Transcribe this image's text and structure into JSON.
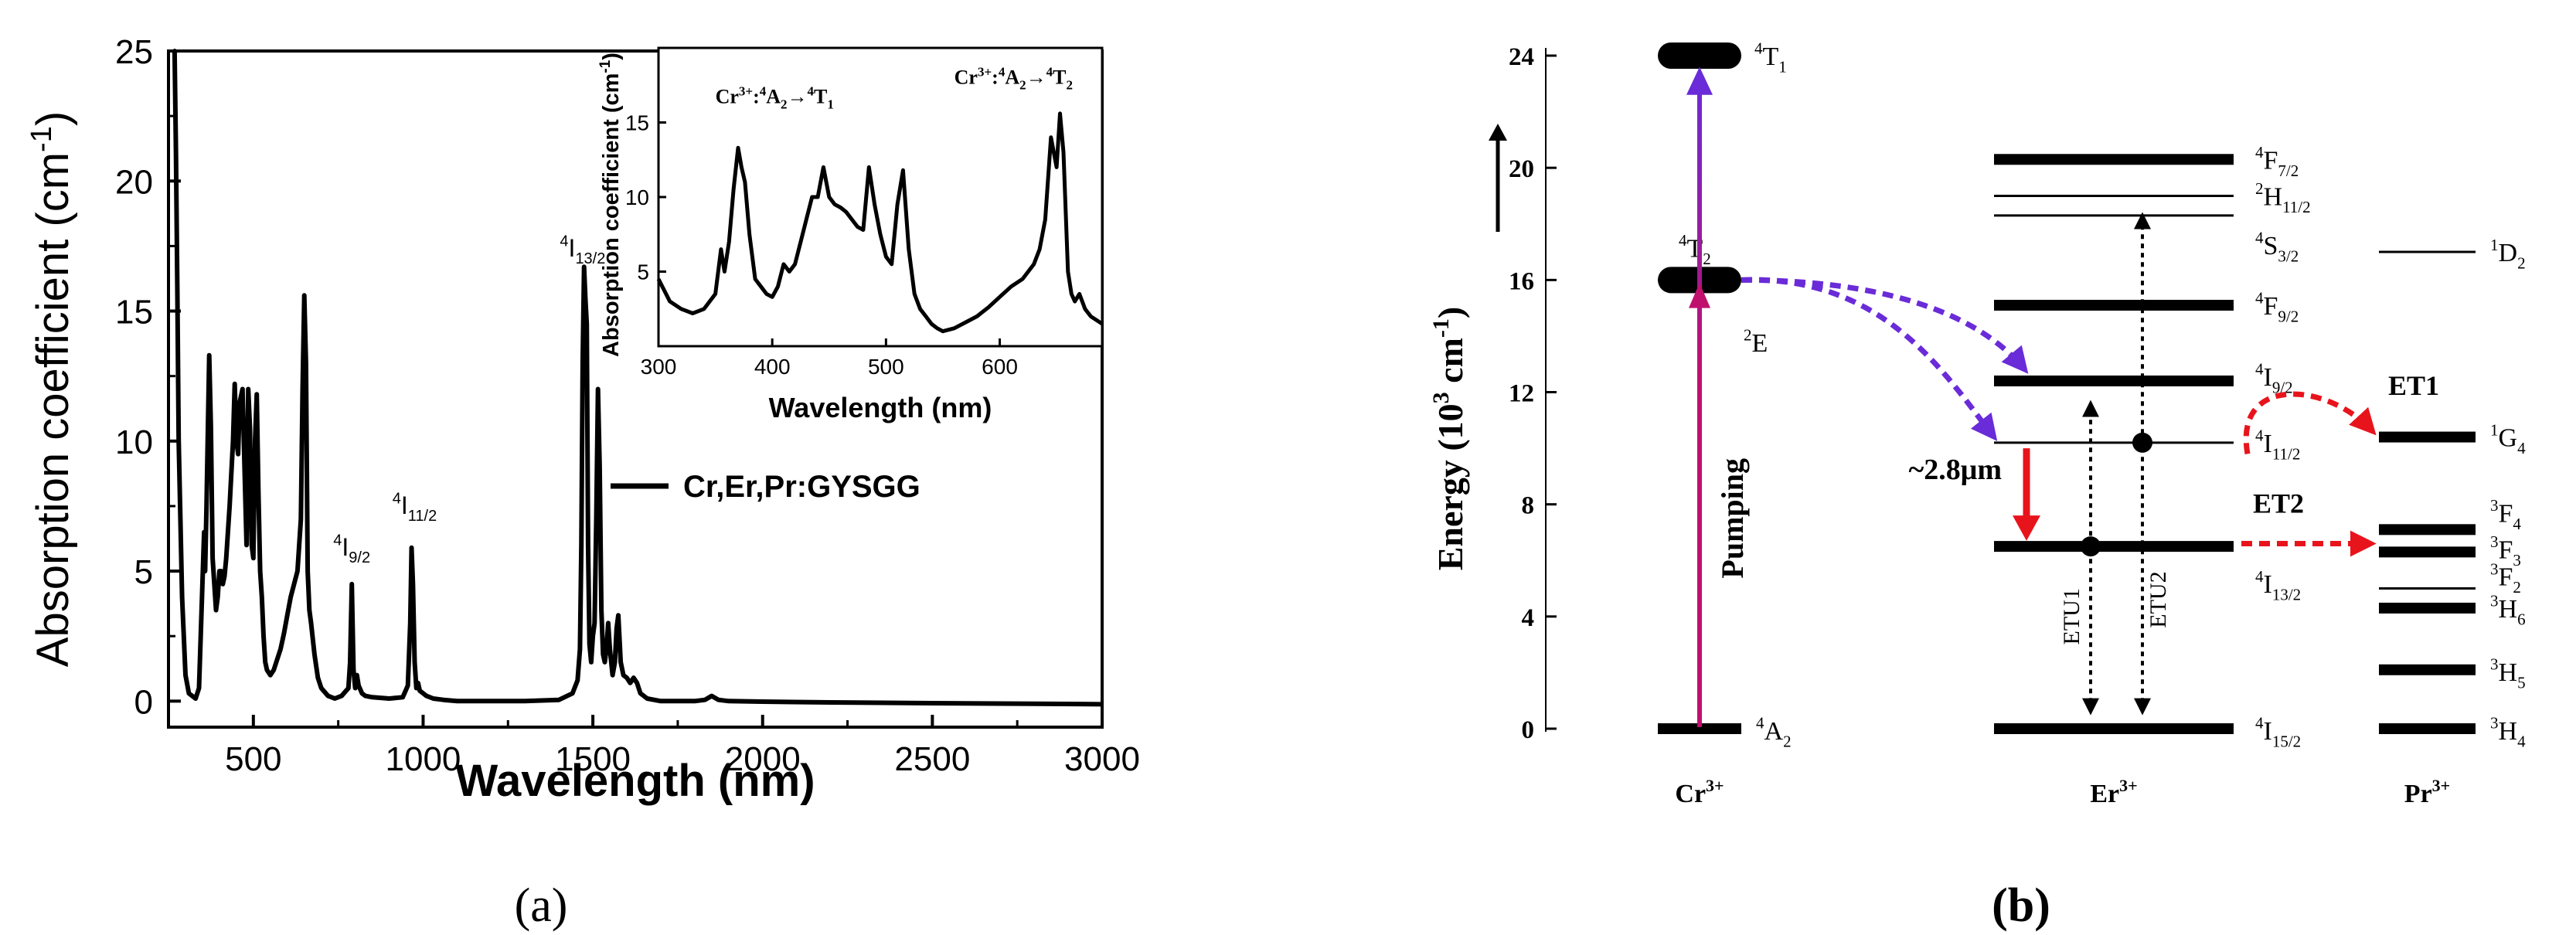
{
  "chart_data": [
    {
      "type": "line",
      "panel_label": "(a)",
      "title": "",
      "xlabel": "Wavelength (nm)",
      "ylabel": "Absorption coefficient (cm",
      "ylabel_sup": "-1",
      "ylabel_close": ")",
      "xlim": [
        250,
        3000
      ],
      "ylim": [
        -1,
        25
      ],
      "xticks": [
        500,
        1000,
        1500,
        2000,
        2500,
        3000
      ],
      "yticks": [
        0,
        5,
        10,
        15,
        20,
        25
      ],
      "legend": {
        "label": "Cr,Er,Pr:GYSGG",
        "placement": "center-right"
      },
      "annotations": [
        {
          "base": "I",
          "sup": "4",
          "sub": "9/2",
          "x": 790,
          "y": 5.6
        },
        {
          "base": "I",
          "sup": "4",
          "sub": "11/2",
          "x": 975,
          "y": 7.2
        },
        {
          "base": "I",
          "sup": "4",
          "sub": "13/2",
          "x": 1470,
          "y": 17.1
        }
      ],
      "series": [
        {
          "name": "Cr,Er,Pr:GYSGG",
          "x": [
            265,
            268,
            272,
            276,
            280,
            290,
            300,
            310,
            320,
            330,
            340,
            350,
            355,
            358,
            362,
            366,
            370,
            375,
            380,
            385,
            390,
            395,
            400,
            405,
            410,
            415,
            420,
            430,
            440,
            445,
            450,
            455,
            460,
            468,
            475,
            480,
            485,
            490,
            495,
            500,
            505,
            510,
            515,
            520,
            525,
            530,
            535,
            540,
            550,
            560,
            570,
            580,
            590,
            600,
            610,
            620,
            630,
            640,
            645,
            650,
            655,
            660,
            665,
            670,
            680,
            690,
            700,
            720,
            740,
            760,
            780,
            785,
            790,
            795,
            800,
            805,
            810,
            820,
            830,
            850,
            900,
            940,
            955,
            962,
            966,
            970,
            975,
            980,
            985,
            990,
            1000,
            1010,
            1030,
            1060,
            1100,
            1200,
            1300,
            1400,
            1440,
            1455,
            1462,
            1466,
            1470,
            1474,
            1478,
            1482,
            1486,
            1490,
            1495,
            1500,
            1505,
            1510,
            1515,
            1520,
            1525,
            1530,
            1535,
            1540,
            1545,
            1550,
            1558,
            1565,
            1570,
            1575,
            1582,
            1590,
            1600,
            1610,
            1620,
            1630,
            1640,
            1660,
            1700,
            1800,
            1830,
            1850,
            1870,
            1900,
            2000,
            2200,
            2500,
            2800,
            3000
          ],
          "y": [
            25,
            25,
            21,
            16,
            10,
            4,
            1,
            0.3,
            0.2,
            0.1,
            0.5,
            4.5,
            6.5,
            5.0,
            7.5,
            10.5,
            13.3,
            10.5,
            5.5,
            4.5,
            3.5,
            4.0,
            5.0,
            5.0,
            4.5,
            4.8,
            5.5,
            7.5,
            10.0,
            12.2,
            10.0,
            9.5,
            11.5,
            12.0,
            8.5,
            6.0,
            12.0,
            10.5,
            6.0,
            5.5,
            10.0,
            11.8,
            8.0,
            5.0,
            4.0,
            2.5,
            1.5,
            1.2,
            1.0,
            1.2,
            1.6,
            2.0,
            2.6,
            3.3,
            4.0,
            4.5,
            5.0,
            7.0,
            12.0,
            15.6,
            13.0,
            5.0,
            3.5,
            3.0,
            1.8,
            0.9,
            0.5,
            0.2,
            0.1,
            0.2,
            0.5,
            1.5,
            4.5,
            1.2,
            0.5,
            1.0,
            0.6,
            0.3,
            0.2,
            0.15,
            0.1,
            0.15,
            0.6,
            3.0,
            5.9,
            4.5,
            1.5,
            0.5,
            0.7,
            0.4,
            0.3,
            0.2,
            0.1,
            0.05,
            0.0,
            0.0,
            0.0,
            0.05,
            0.3,
            0.8,
            2.0,
            6.0,
            13.0,
            16.7,
            15.5,
            14.5,
            6.0,
            2.2,
            1.5,
            2.5,
            3.0,
            7.0,
            12.0,
            9.0,
            3.5,
            1.8,
            1.5,
            2.0,
            3.0,
            2.0,
            1.0,
            1.5,
            2.8,
            3.3,
            1.5,
            1.0,
            0.9,
            0.7,
            0.9,
            0.7,
            0.3,
            0.1,
            0.0,
            0.0,
            0.05,
            0.2,
            0.05,
            0.0,
            -0.02,
            -0.05,
            -0.08,
            -0.1,
            -0.12
          ]
        }
      ]
    },
    {
      "type": "line",
      "title": "",
      "xlabel": "Wavelength (nm)",
      "ylabel": "Absorption coefficient (cm",
      "ylabel_sup": "-1",
      "ylabel_close": ")",
      "xlim": [
        300,
        690
      ],
      "ylim": [
        0,
        20
      ],
      "xticks": [
        300,
        400,
        500,
        600
      ],
      "yticks": [
        5,
        10,
        15
      ],
      "annotations": [
        {
          "text_prefix": "Cr",
          "text_prefix_sup": "3+",
          "text_colon": ":",
          "from_sup": "4",
          "from_base": "A",
          "from_sub": "2",
          "arrow": "→",
          "to_sup": "4",
          "to_base": "T",
          "to_sub": "1",
          "x": 350,
          "y": 16.3
        },
        {
          "text_prefix": "Cr",
          "text_prefix_sup": "3+",
          "text_colon": ":",
          "from_sup": "4",
          "from_base": "A",
          "from_sub": "2",
          "arrow": "→",
          "to_sup": "4",
          "to_base": "T",
          "to_sub": "2",
          "x": 560,
          "y": 17.6
        }
      ],
      "series": [
        {
          "name": "Cr,Er,Pr:GYSGG",
          "x": [
            300,
            310,
            320,
            330,
            340,
            350,
            355,
            358,
            362,
            366,
            370,
            373,
            376,
            380,
            385,
            390,
            395,
            400,
            405,
            410,
            415,
            420,
            425,
            430,
            435,
            440,
            445,
            450,
            455,
            460,
            465,
            470,
            475,
            480,
            485,
            490,
            495,
            500,
            505,
            510,
            515,
            520,
            525,
            530,
            535,
            540,
            545,
            550,
            560,
            570,
            580,
            590,
            600,
            610,
            620,
            630,
            635,
            640,
            645,
            650,
            653,
            656,
            660,
            663,
            666,
            670,
            675,
            680,
            690
          ],
          "y": [
            4.5,
            3.0,
            2.5,
            2.2,
            2.5,
            3.5,
            6.5,
            5.0,
            7.0,
            10.5,
            13.3,
            12.0,
            11.0,
            7.5,
            4.5,
            4.0,
            3.5,
            3.3,
            4.0,
            5.5,
            5.0,
            5.5,
            7.0,
            8.5,
            10.0,
            10.0,
            12.0,
            10.0,
            9.5,
            9.3,
            9.0,
            8.5,
            8.0,
            7.8,
            12.0,
            9.5,
            7.5,
            6.0,
            5.5,
            9.5,
            11.8,
            6.5,
            3.5,
            2.5,
            2.0,
            1.5,
            1.2,
            1.0,
            1.2,
            1.6,
            2.0,
            2.6,
            3.3,
            4.0,
            4.5,
            5.5,
            6.5,
            8.5,
            14.0,
            12.0,
            15.6,
            13.0,
            5.0,
            3.5,
            3.0,
            3.5,
            2.5,
            2.0,
            1.5
          ]
        }
      ]
    },
    {
      "type": "diagram",
      "panel_label": "(b)",
      "title": "",
      "ylabel": "Energy (10",
      "ylabel_sup": "3",
      "ylabel_unit": " cm",
      "ylabel_unit_sup": "-1",
      "ylabel_close": ")",
      "ylim": [
        0,
        24
      ],
      "yticks": [
        0,
        4,
        8,
        12,
        16,
        20,
        24
      ],
      "columns": [
        {
          "ion": "Cr",
          "ion_sup": "3+",
          "levels": [
            {
              "base": "A",
              "sup": "4",
              "sub": "2",
              "energy": 0,
              "style": "thick"
            },
            {
              "base": "T",
              "sup": "4",
              "sub": "2",
              "energy": 16.0,
              "style": "pill"
            },
            {
              "base": "E",
              "sup": "2",
              "sub": "",
              "energy": 15.1,
              "style": "label-only"
            },
            {
              "base": "T",
              "sup": "4",
              "sub": "1",
              "energy": 24.0,
              "style": "pill"
            }
          ]
        },
        {
          "ion": "Er",
          "ion_sup": "3+",
          "levels": [
            {
              "base": "I",
              "sup": "4",
              "sub": "15/2",
              "energy": 0,
              "style": "thick"
            },
            {
              "base": "I",
              "sup": "4",
              "sub": "13/2",
              "energy": 6.5,
              "style": "thick"
            },
            {
              "base": "I",
              "sup": "4",
              "sub": "11/2",
              "energy": 10.2,
              "style": "thin"
            },
            {
              "base": "I",
              "sup": "4",
              "sub": "9/2",
              "energy": 12.4,
              "style": "thick"
            },
            {
              "base": "F",
              "sup": "4",
              "sub": "9/2",
              "energy": 15.1,
              "style": "thick"
            },
            {
              "base": "S",
              "sup": "4",
              "sub": "3/2",
              "energy": 18.3,
              "style": "thin"
            },
            {
              "base": "H",
              "sup": "2",
              "sub": "11/2",
              "energy": 19.0,
              "style": "thin"
            },
            {
              "base": "F",
              "sup": "4",
              "sub": "7/2",
              "energy": 20.3,
              "style": "thick"
            }
          ]
        },
        {
          "ion": "Pr",
          "ion_sup": "3+",
          "levels": [
            {
              "base": "H",
              "sup": "3",
              "sub": "4",
              "energy": 0,
              "style": "thick"
            },
            {
              "base": "H",
              "sup": "3",
              "sub": "5",
              "energy": 2.1,
              "style": "thick"
            },
            {
              "base": "H",
              "sup": "3",
              "sub": "6",
              "energy": 4.3,
              "style": "thick"
            },
            {
              "base": "F",
              "sup": "3",
              "sub": "2",
              "energy": 5.0,
              "style": "thin"
            },
            {
              "base": "F",
              "sup": "3",
              "sub": "3",
              "energy": 6.3,
              "style": "thick"
            },
            {
              "base": "F",
              "sup": "3",
              "sub": "4",
              "energy": 7.1,
              "style": "thick"
            },
            {
              "base": "G",
              "sup": "1",
              "sub": "4",
              "energy": 10.4,
              "style": "thick"
            },
            {
              "base": "D",
              "sup": "1",
              "sub": "2",
              "energy": 17.0,
              "style": "thin"
            }
          ]
        }
      ],
      "transitions": [
        {
          "label": "Pumping",
          "from": 0,
          "to": 24,
          "color": "#c0106e"
        },
        {
          "label": "~2.8μm",
          "from": 10.2,
          "to": 6.5,
          "color": "#e8141c"
        },
        {
          "label": "ETU1",
          "from": 0,
          "to": 12.4,
          "color": "#000000"
        },
        {
          "label": "ETU2",
          "from": 0,
          "to": 19.0,
          "color": "#000000"
        },
        {
          "label": "ET1",
          "from": 10.2,
          "to": 10.4,
          "color": "#e8141c"
        },
        {
          "label": "ET2",
          "from": 6.5,
          "to": 6.5,
          "color": "#e8141c"
        }
      ],
      "colors": {
        "pump": "#c0106e",
        "pump_top": "#6a2bd8",
        "nonrad": "#6a2bd8",
        "red": "#e8141c",
        "black": "#000000"
      }
    }
  ]
}
